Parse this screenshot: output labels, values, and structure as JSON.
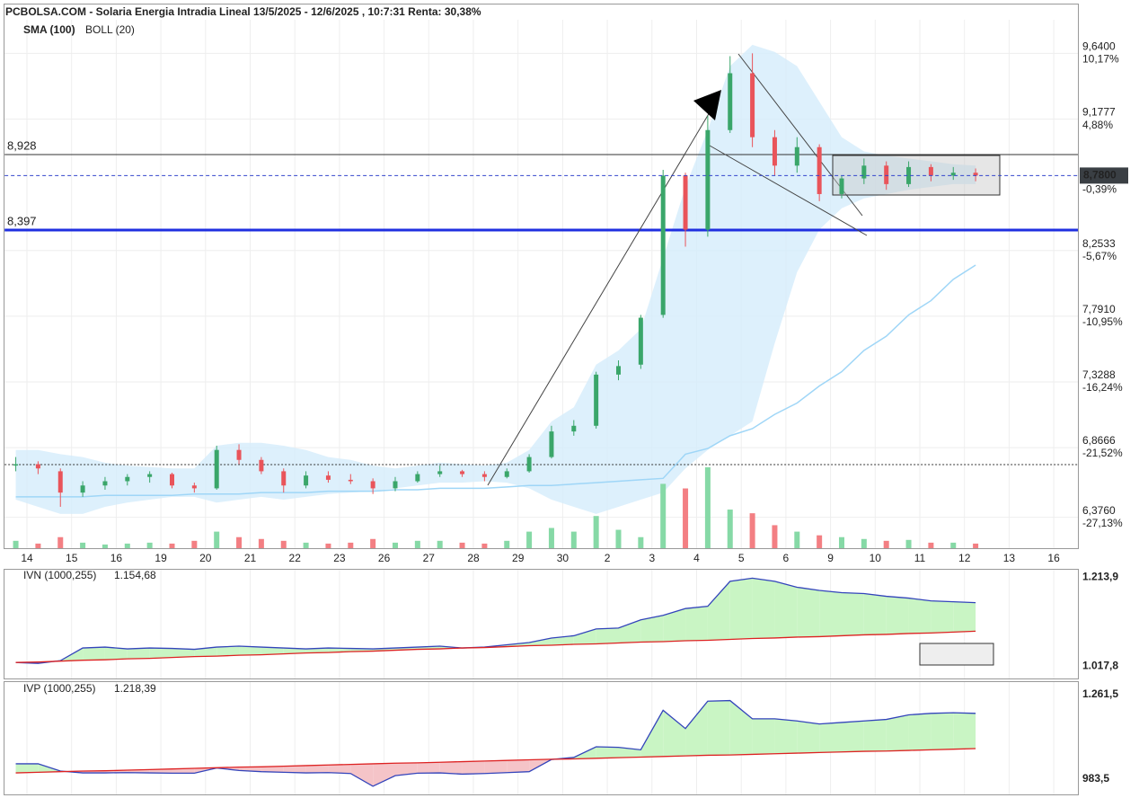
{
  "chart_data": [
    {
      "type": "candlestick",
      "title": "PCBOLSA.COM - Solaria Energia Intradia Lineal 13/5/2025 - 12/6/2025 , 10:7:31 Renta: 30,38%",
      "categories": [
        "14",
        null,
        "15",
        null,
        "16",
        null,
        "19",
        null,
        "20",
        null,
        "21",
        null,
        "22",
        null,
        "23",
        null,
        "26",
        null,
        "27",
        null,
        "28",
        null,
        "29",
        null,
        "30",
        null,
        "2",
        null,
        "3",
        null,
        "4",
        null,
        "5",
        null,
        "6",
        null,
        "9",
        null,
        "10",
        null,
        "11",
        null,
        "12",
        null,
        "13",
        null,
        "16",
        null
      ],
      "open": [
        6.74,
        6.75,
        6.7,
        6.55,
        6.6,
        6.63,
        6.66,
        6.68,
        6.6,
        6.58,
        6.85,
        6.78,
        6.7,
        6.6,
        6.67,
        6.64,
        6.63,
        6.58,
        6.63,
        6.68,
        6.7,
        6.68,
        6.66,
        6.7,
        6.8,
        6.98,
        7.02,
        7.38,
        7.45,
        7.8,
        8.78,
        8.4,
        9.1,
        9.5,
        9.05,
        8.85,
        8.98,
        8.65,
        8.76,
        8.85,
        8.72,
        8.84,
        8.78,
        8.8,
        null,
        null,
        null,
        null
      ],
      "high": [
        6.8,
        6.77,
        6.72,
        6.63,
        6.66,
        6.68,
        6.7,
        6.69,
        6.62,
        6.88,
        6.89,
        6.8,
        6.72,
        6.7,
        6.7,
        6.68,
        6.65,
        6.66,
        6.7,
        6.74,
        6.71,
        6.7,
        6.72,
        6.82,
        7.02,
        7.06,
        7.4,
        7.48,
        7.8,
        8.82,
        8.8,
        9.2,
        9.62,
        9.64,
        9.1,
        9.05,
        9.0,
        8.78,
        8.9,
        8.88,
        8.88,
        8.86,
        8.84,
        8.83,
        null,
        null,
        null,
        null
      ],
      "low": [
        6.7,
        6.68,
        6.45,
        6.52,
        6.57,
        6.6,
        6.62,
        6.58,
        6.55,
        6.57,
        6.75,
        6.68,
        6.55,
        6.58,
        6.62,
        6.61,
        6.54,
        6.56,
        6.62,
        6.66,
        6.66,
        6.63,
        6.65,
        6.69,
        6.79,
        6.95,
        7.0,
        7.34,
        7.42,
        7.78,
        8.28,
        8.35,
        9.08,
        8.98,
        8.78,
        8.8,
        8.6,
        8.62,
        8.72,
        8.68,
        8.7,
        8.74,
        8.75,
        8.74,
        null,
        null,
        null,
        null
      ],
      "close": [
        6.75,
        6.72,
        6.55,
        6.6,
        6.63,
        6.66,
        6.68,
        6.6,
        6.58,
        6.85,
        6.78,
        6.7,
        6.6,
        6.67,
        6.64,
        6.63,
        6.58,
        6.63,
        6.68,
        6.7,
        6.68,
        6.66,
        6.7,
        6.8,
        6.98,
        7.02,
        7.38,
        7.44,
        7.78,
        8.78,
        8.4,
        9.1,
        9.5,
        9.05,
        8.85,
        8.98,
        8.65,
        8.76,
        8.85,
        8.72,
        8.84,
        8.78,
        8.8,
        8.78,
        null,
        null,
        null,
        null
      ],
      "volume": [
        8,
        5,
        12,
        6,
        4,
        5,
        6,
        5,
        8,
        18,
        12,
        10,
        8,
        6,
        5,
        6,
        10,
        6,
        8,
        8,
        6,
        5,
        8,
        18,
        22,
        18,
        35,
        20,
        12,
        70,
        65,
        88,
        42,
        38,
        25,
        18,
        14,
        12,
        10,
        8,
        9,
        6,
        6,
        5,
        null,
        null,
        null,
        null
      ],
      "up_color": "#3aa66a",
      "down_color": "#e9545a",
      "up_volume_color": "#86d9a6",
      "down_volume_color": "#f37f83",
      "indicators": [
        {
          "name": "SMA (100)",
          "color": "#9fd6f7",
          "values": [
            6.52,
            6.52,
            6.52,
            6.52,
            6.53,
            6.53,
            6.53,
            6.53,
            6.54,
            6.54,
            6.54,
            6.55,
            6.55,
            6.55,
            6.56,
            6.56,
            6.56,
            6.57,
            6.57,
            6.58,
            6.58,
            6.58,
            6.59,
            6.6,
            6.6,
            6.61,
            6.62,
            6.63,
            6.64,
            6.65,
            6.82,
            6.86,
            6.95,
            7.0,
            7.1,
            7.18,
            7.3,
            7.4,
            7.55,
            7.65,
            7.8,
            7.9,
            8.05,
            8.15,
            null,
            null,
            null,
            null
          ]
        },
        {
          "name": "BOLL (20)",
          "color": "#d4ecfb",
          "upper": [
            6.85,
            6.85,
            6.82,
            6.8,
            6.76,
            6.74,
            6.73,
            6.72,
            6.72,
            6.88,
            6.9,
            6.9,
            6.88,
            6.85,
            6.8,
            6.78,
            6.74,
            6.72,
            6.74,
            6.76,
            6.75,
            6.74,
            6.76,
            6.85,
            7.05,
            7.15,
            7.45,
            7.55,
            7.7,
            8.2,
            8.7,
            9.1,
            9.55,
            9.7,
            9.65,
            9.55,
            9.3,
            9.05,
            8.95,
            8.92,
            8.9,
            8.88,
            8.86,
            8.85,
            null,
            null,
            null,
            null
          ],
          "lower": [
            6.5,
            6.45,
            6.4,
            6.4,
            6.45,
            6.48,
            6.5,
            6.52,
            6.52,
            6.48,
            6.5,
            6.52,
            6.5,
            6.52,
            6.54,
            6.55,
            6.56,
            6.58,
            6.6,
            6.62,
            6.62,
            6.63,
            6.62,
            6.58,
            6.5,
            6.45,
            6.4,
            6.45,
            6.5,
            6.55,
            6.72,
            6.85,
            6.95,
            7.05,
            7.6,
            8.1,
            8.4,
            8.55,
            8.62,
            8.65,
            8.68,
            8.7,
            8.72,
            8.72,
            null,
            null,
            null,
            null
          ]
        }
      ],
      "ylim": [
        6.159,
        9.876
      ],
      "yticks": [
        {
          "value": 9.64,
          "label": "9,6400"
        },
        {
          "value": 9.1777,
          "label": "9,1777"
        },
        {
          "value": 8.2533,
          "label": "8,2533"
        },
        {
          "value": 7.791,
          "label": "7,7910"
        },
        {
          "value": 7.3288,
          "label": "7,3288"
        },
        {
          "value": 6.8666,
          "label": "6,8666"
        },
        {
          "value": 6.376,
          "label": "6,3760"
        }
      ],
      "y2lim": [
        -29.61,
        12.87
      ],
      "y2ticks": [
        {
          "value": 10.17,
          "label": "10,17%"
        },
        {
          "value": 4.88,
          "label": "4,88%"
        },
        {
          "value": -5.67,
          "label": "-5,67%"
        },
        {
          "value": -10.95,
          "label": "-10,95%"
        },
        {
          "value": -16.24,
          "label": "-16,24%"
        },
        {
          "value": -21.52,
          "label": "-21,52%"
        },
        {
          "value": -27.13,
          "label": "-27,13%"
        }
      ],
      "levels": [
        {
          "value": 8.928,
          "label": "8,928",
          "color": "#333333"
        },
        {
          "value": 8.397,
          "label": "8,397",
          "color": "#1f2fe0"
        }
      ],
      "ref_line": 6.747,
      "last": {
        "value": 8.78,
        "label": "8,7800",
        "change": {
          "value": -0.39,
          "label": "-0,39%"
        }
      },
      "grid": true
    },
    {
      "type": "area",
      "title": "IVN (1000,255)",
      "last": {
        "value": 1154.68,
        "label": "1.154,68"
      },
      "series": [
        {
          "color": "#3344bb",
          "values": [
            1026,
            1024,
            1030,
            1058,
            1060,
            1056,
            1058,
            1057,
            1055,
            1060,
            1062,
            1060,
            1058,
            1056,
            1058,
            1057,
            1056,
            1058,
            1060,
            1062,
            1058,
            1060,
            1065,
            1070,
            1080,
            1085,
            1100,
            1102,
            1120,
            1130,
            1145,
            1150,
            1205,
            1212,
            1205,
            1192,
            1185,
            1180,
            1178,
            1172,
            1168,
            1162,
            1160,
            1158,
            null,
            null,
            null,
            null
          ]
        },
        {
          "color": "#dd2222",
          "values": [
            1026,
            1027,
            1029,
            1031,
            1032,
            1034,
            1035,
            1037,
            1039,
            1040,
            1042,
            1043,
            1045,
            1047,
            1048,
            1050,
            1051,
            1053,
            1055,
            1056,
            1058,
            1059,
            1061,
            1063,
            1064,
            1066,
            1067,
            1069,
            1071,
            1072,
            1074,
            1075,
            1077,
            1079,
            1080,
            1082,
            1083,
            1085,
            1087,
            1088,
            1090,
            1091,
            1093,
            1095,
            null,
            null,
            null,
            null
          ]
        }
      ],
      "above_color": "#c9f5c4",
      "below_color": "#f5c4c8",
      "ylim": [
        990.7,
        1230.6
      ],
      "yticks": [
        {
          "value": 1213.9,
          "label": "1.213,9"
        },
        {
          "value": 1017.8,
          "label": "1.017,8"
        }
      ]
    },
    {
      "type": "area",
      "title": "IVP (1000,255)",
      "last": {
        "value": 1218.39,
        "label": "1.218,39"
      },
      "series": [
        {
          "color": "#3344bb",
          "values": [
            1034,
            1034,
            1010,
            1004,
            1004,
            1005,
            1004,
            1003,
            1003,
            1020,
            1012,
            1008,
            1006,
            1004,
            1005,
            1002,
            960,
            995,
            1003,
            1004,
            1000,
            1002,
            1005,
            1008,
            1048,
            1055,
            1090,
            1088,
            1080,
            1210,
            1150,
            1240,
            1242,
            1182,
            1182,
            1175,
            1165,
            1170,
            1175,
            1180,
            1195,
            1200,
            1202,
            1200,
            null,
            null,
            null,
            null
          ]
        },
        {
          "color": "#dd2222",
          "values": [
            1004,
            1006,
            1008,
            1010,
            1011,
            1013,
            1015,
            1017,
            1019,
            1021,
            1023,
            1024,
            1026,
            1028,
            1030,
            1032,
            1034,
            1036,
            1037,
            1039,
            1041,
            1043,
            1045,
            1047,
            1049,
            1050,
            1052,
            1054,
            1056,
            1058,
            1060,
            1062,
            1063,
            1065,
            1067,
            1069,
            1071,
            1073,
            1075,
            1076,
            1078,
            1080,
            1082,
            1084,
            null,
            null,
            null,
            null
          ]
        }
      ],
      "above_color": "#c9f5c4",
      "below_color": "#f5c4c8",
      "ylim": [
        933.2,
        1302.9
      ],
      "yticks": [
        {
          "value": 1261.5,
          "label": "1.261,5"
        },
        {
          "value": 983.5,
          "label": "983,5"
        }
      ]
    }
  ]
}
